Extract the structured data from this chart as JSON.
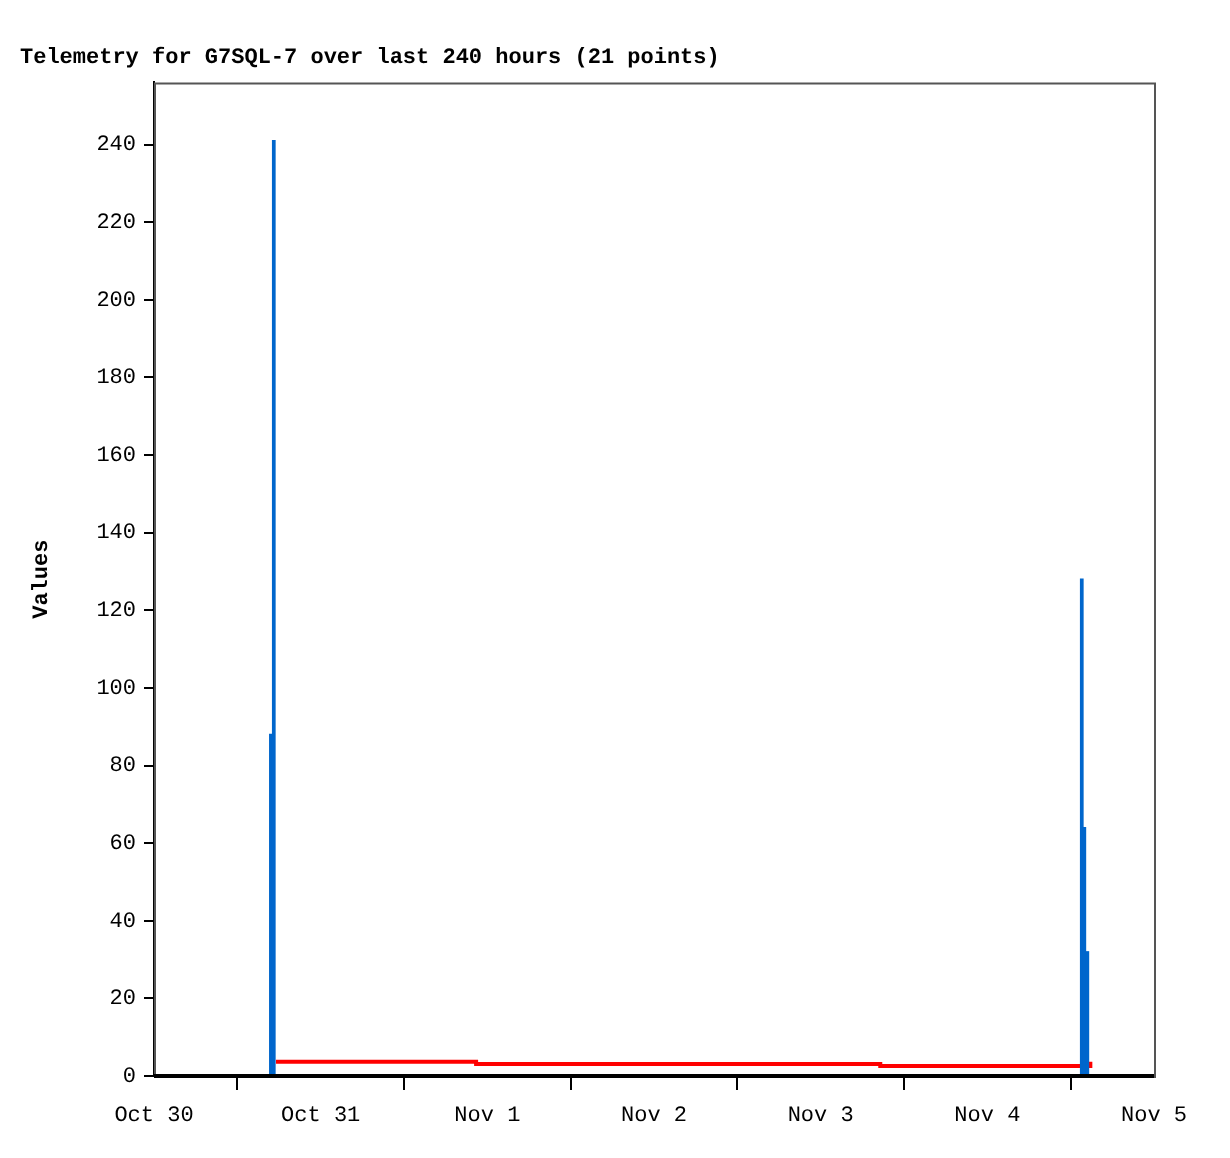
{
  "chart_data": {
    "type": "bar",
    "title": "Telemetry for G7SQL-7 over last 240 hours (21 points)",
    "ylabel": "Values",
    "xlim": [
      "--10-30",
      "--11-05"
    ],
    "xticks": [
      {
        "value": "--10-30",
        "label": "Oct 30"
      },
      {
        "value": "--10-31",
        "label": "Oct 31"
      },
      {
        "value": "--11-01",
        "label": "Nov 1"
      },
      {
        "value": "--11-02",
        "label": "Nov 2"
      },
      {
        "value": "--11-03",
        "label": "Nov 3"
      },
      {
        "value": "--11-04",
        "label": "Nov 4"
      },
      {
        "value": "--11-05",
        "label": "Nov 5"
      }
    ],
    "ylim": [
      0,
      256
    ],
    "yticks": [
      0,
      20,
      40,
      60,
      80,
      100,
      120,
      140,
      160,
      180,
      200,
      220,
      240
    ],
    "grid": false,
    "legend": false,
    "series": [
      {
        "color": "#0066cc",
        "x": [
          "--10-30T16:50",
          "--10-30T17:15",
          "--11-04T13:36",
          "--11-04T13:58",
          "--11-04T14:24"
        ],
        "values": [
          88,
          241,
          128,
          64,
          32
        ]
      },
      {
        "type": "step",
        "color": "#ff0000",
        "x": [
          "--10-30T17:34",
          "--10-31T22:23",
          "--11-03T08:35",
          "--11-04T14:45",
          "--11-04T14:50"
        ],
        "values": [
          3.7,
          3.1,
          2.6,
          2.6,
          3.7
        ]
      }
    ]
  }
}
